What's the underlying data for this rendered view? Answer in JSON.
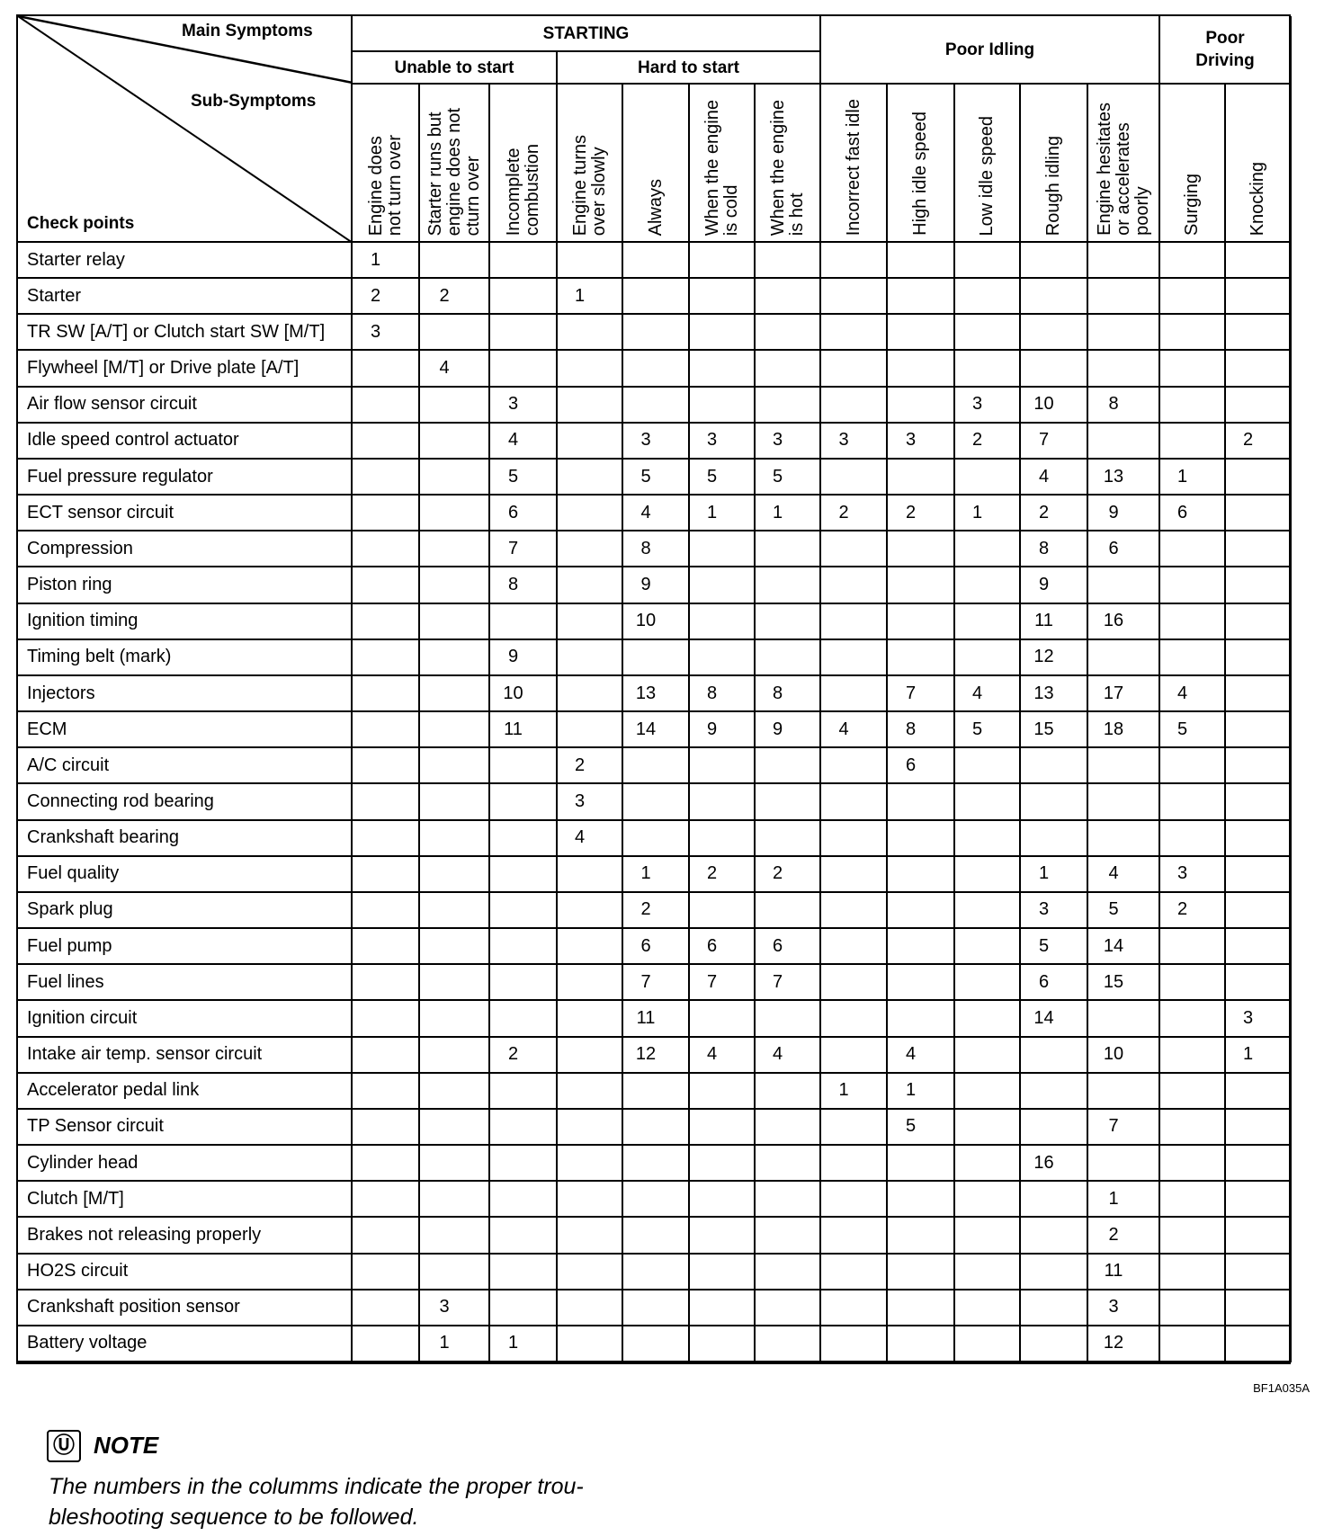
{
  "header": {
    "main_symptoms": "Main Symptoms",
    "sub_symptoms": "Sub-Symptoms",
    "check_points": "Check points",
    "groups": {
      "starting": "STARTING",
      "unable_to_start": "Unable to start",
      "hard_to_start": "Hard to start",
      "poor_idling": "Poor Idling",
      "poor_driving": "Poor\nDriving"
    },
    "columns": [
      "Engine does\nnot turn over",
      "Starter runs but\nengine does not\ncturn over",
      "Incomplete\ncombustion",
      "Engine turns\nover slowly",
      "Always",
      "When the engine\nis cold",
      "When the engine\nis hot",
      "Incorrect fast idle",
      "High idle speed",
      "Low idle speed",
      "Rough idling",
      "Engine hesitates\nor accelerates\npoorly",
      "Surging",
      "Knocking"
    ]
  },
  "rows": [
    {
      "label": "Starter relay",
      "values": [
        "1",
        "",
        "",
        "",
        "",
        "",
        "",
        "",
        "",
        "",
        "",
        "",
        "",
        ""
      ]
    },
    {
      "label": "Starter",
      "values": [
        "2",
        "2",
        "",
        "1",
        "",
        "",
        "",
        "",
        "",
        "",
        "",
        "",
        "",
        ""
      ]
    },
    {
      "label": "TR SW [A/T] or Clutch start SW [M/T]",
      "values": [
        "3",
        "",
        "",
        "",
        "",
        "",
        "",
        "",
        "",
        "",
        "",
        "",
        "",
        ""
      ]
    },
    {
      "label": "Flywheel [M/T] or Drive plate [A/T]",
      "values": [
        "",
        "4",
        "",
        "",
        "",
        "",
        "",
        "",
        "",
        "",
        "",
        "",
        "",
        ""
      ]
    },
    {
      "label": "Air flow sensor circuit",
      "values": [
        "",
        "",
        "3",
        "",
        "",
        "",
        "",
        "",
        "",
        "3",
        "10",
        "8",
        "",
        ""
      ]
    },
    {
      "label": "Idle speed control actuator",
      "values": [
        "",
        "",
        "4",
        "",
        "3",
        "3",
        "3",
        "3",
        "3",
        "2",
        "7",
        "",
        "",
        "2"
      ]
    },
    {
      "label": "Fuel pressure regulator",
      "values": [
        "",
        "",
        "5",
        "",
        "5",
        "5",
        "5",
        "",
        "",
        "",
        "4",
        "13",
        "1",
        ""
      ]
    },
    {
      "label": "ECT sensor circuit",
      "values": [
        "",
        "",
        "6",
        "",
        "4",
        "1",
        "1",
        "2",
        "2",
        "1",
        "2",
        "9",
        "6",
        ""
      ]
    },
    {
      "label": "Compression",
      "values": [
        "",
        "",
        "7",
        "",
        "8",
        "",
        "",
        "",
        "",
        "",
        "8",
        "6",
        "",
        ""
      ]
    },
    {
      "label": "Piston ring",
      "values": [
        "",
        "",
        "8",
        "",
        "9",
        "",
        "",
        "",
        "",
        "",
        "9",
        "",
        "",
        ""
      ]
    },
    {
      "label": "Ignition timing",
      "values": [
        "",
        "",
        "",
        "",
        "10",
        "",
        "",
        "",
        "",
        "",
        "11",
        "16",
        "",
        ""
      ]
    },
    {
      "label": "Timing belt (mark)",
      "values": [
        "",
        "",
        "9",
        "",
        "",
        "",
        "",
        "",
        "",
        "",
        "12",
        "",
        "",
        ""
      ]
    },
    {
      "label": "Injectors",
      "values": [
        "",
        "",
        "10",
        "",
        "13",
        "8",
        "8",
        "",
        "7",
        "4",
        "13",
        "17",
        "4",
        ""
      ]
    },
    {
      "label": "ECM",
      "values": [
        "",
        "",
        "11",
        "",
        "14",
        "9",
        "9",
        "4",
        "8",
        "5",
        "15",
        "18",
        "5",
        ""
      ]
    },
    {
      "label": "A/C circuit",
      "values": [
        "",
        "",
        "",
        "2",
        "",
        "",
        "",
        "",
        "6",
        "",
        "",
        "",
        "",
        ""
      ]
    },
    {
      "label": "Connecting rod bearing",
      "values": [
        "",
        "",
        "",
        "3",
        "",
        "",
        "",
        "",
        "",
        "",
        "",
        "",
        "",
        ""
      ]
    },
    {
      "label": "Crankshaft bearing",
      "values": [
        "",
        "",
        "",
        "4",
        "",
        "",
        "",
        "",
        "",
        "",
        "",
        "",
        "",
        ""
      ]
    },
    {
      "label": "Fuel quality",
      "values": [
        "",
        "",
        "",
        "",
        "1",
        "2",
        "2",
        "",
        "",
        "",
        "1",
        "4",
        "3",
        ""
      ]
    },
    {
      "label": "Spark plug",
      "values": [
        "",
        "",
        "",
        "",
        "2",
        "",
        "",
        "",
        "",
        "",
        "3",
        "5",
        "2",
        ""
      ]
    },
    {
      "label": "Fuel pump",
      "values": [
        "",
        "",
        "",
        "",
        "6",
        "6",
        "6",
        "",
        "",
        "",
        "5",
        "14",
        "",
        ""
      ]
    },
    {
      "label": "Fuel lines",
      "values": [
        "",
        "",
        "",
        "",
        "7",
        "7",
        "7",
        "",
        "",
        "",
        "6",
        "15",
        "",
        ""
      ]
    },
    {
      "label": "Ignition circuit",
      "values": [
        "",
        "",
        "",
        "",
        "11",
        "",
        "",
        "",
        "",
        "",
        "14",
        "",
        "",
        "3"
      ]
    },
    {
      "label": "Intake air temp. sensor circuit",
      "values": [
        "",
        "",
        "2",
        "",
        "12",
        "4",
        "4",
        "",
        "4",
        "",
        "",
        "10",
        "",
        "1"
      ]
    },
    {
      "label": "Accelerator pedal link",
      "values": [
        "",
        "",
        "",
        "",
        "",
        "",
        "",
        "1",
        "1",
        "",
        "",
        "",
        "",
        ""
      ]
    },
    {
      "label": "TP Sensor circuit",
      "values": [
        "",
        "",
        "",
        "",
        "",
        "",
        "",
        "",
        "5",
        "",
        "",
        "7",
        "",
        ""
      ]
    },
    {
      "label": "Cylinder head",
      "values": [
        "",
        "",
        "",
        "",
        "",
        "",
        "",
        "",
        "",
        "",
        "16",
        "",
        "",
        ""
      ]
    },
    {
      "label": "Clutch [M/T]",
      "values": [
        "",
        "",
        "",
        "",
        "",
        "",
        "",
        "",
        "",
        "",
        "",
        "1",
        "",
        ""
      ]
    },
    {
      "label": "Brakes not releasing properly",
      "values": [
        "",
        "",
        "",
        "",
        "",
        "",
        "",
        "",
        "",
        "",
        "",
        "2",
        "",
        ""
      ]
    },
    {
      "label": "HO2S circuit",
      "values": [
        "",
        "",
        "",
        "",
        "",
        "",
        "",
        "",
        "",
        "",
        "",
        "11",
        "",
        ""
      ]
    },
    {
      "label": "Crankshaft position sensor",
      "values": [
        "",
        "3",
        "",
        "",
        "",
        "",
        "",
        "",
        "",
        "",
        "",
        "3",
        "",
        ""
      ]
    },
    {
      "label": "Battery voltage",
      "values": [
        "",
        "1",
        "1",
        "",
        "",
        "",
        "",
        "",
        "",
        "",
        "",
        "12",
        "",
        ""
      ]
    }
  ],
  "figure_code": "BF1A035A",
  "note": {
    "icon": "note-book-icon",
    "title": "NOTE",
    "text": "The numbers in the columms indicate the proper trou-\nbleshooting sequence to be followed."
  }
}
